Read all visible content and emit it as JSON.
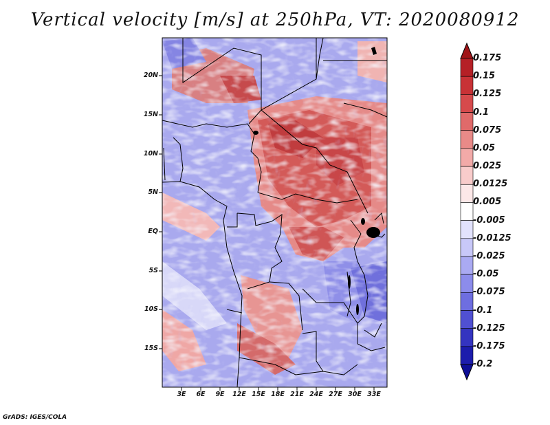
{
  "title": "Vertical velocity [m/s] at 250hPa, VT: 2020080912",
  "credit": "GrADS: IGES/COLA",
  "map": {
    "variable": "Vertical velocity",
    "units": "m/s",
    "level": "250hPa",
    "valid_time": "2020080912",
    "lat_range": [
      -20,
      25
    ],
    "lon_range": [
      0,
      35
    ],
    "lat_ticks": [
      "20N",
      "15N",
      "10N",
      "5N",
      "EQ",
      "5S",
      "10S",
      "15S"
    ],
    "lon_ticks": [
      "3E",
      "6E",
      "9E",
      "12E",
      "15E",
      "18E",
      "21E",
      "24E",
      "27E",
      "30E",
      "33E"
    ]
  },
  "colorbar": {
    "labels": [
      "0.175",
      "0.15",
      "0.125",
      "0.1",
      "0.075",
      "0.05",
      "0.025",
      "0.0125",
      "0.005",
      "-0.005",
      "-0.0125",
      "-0.025",
      "-0.05",
      "-0.075",
      "-0.1",
      "-0.125",
      "-0.175",
      "-0.2"
    ],
    "colors": [
      "#a01418",
      "#b52026",
      "#c83236",
      "#d64a4c",
      "#e06a6a",
      "#e98a88",
      "#f2aaa8",
      "#f8cccb",
      "#fce8e8",
      "#ffffff",
      "#e2e2fc",
      "#c8c8f8",
      "#aaaaf2",
      "#8c8ceb",
      "#6e6ee0",
      "#5050d2",
      "#3434c0",
      "#1c1cac",
      "#0e0e96"
    ]
  }
}
